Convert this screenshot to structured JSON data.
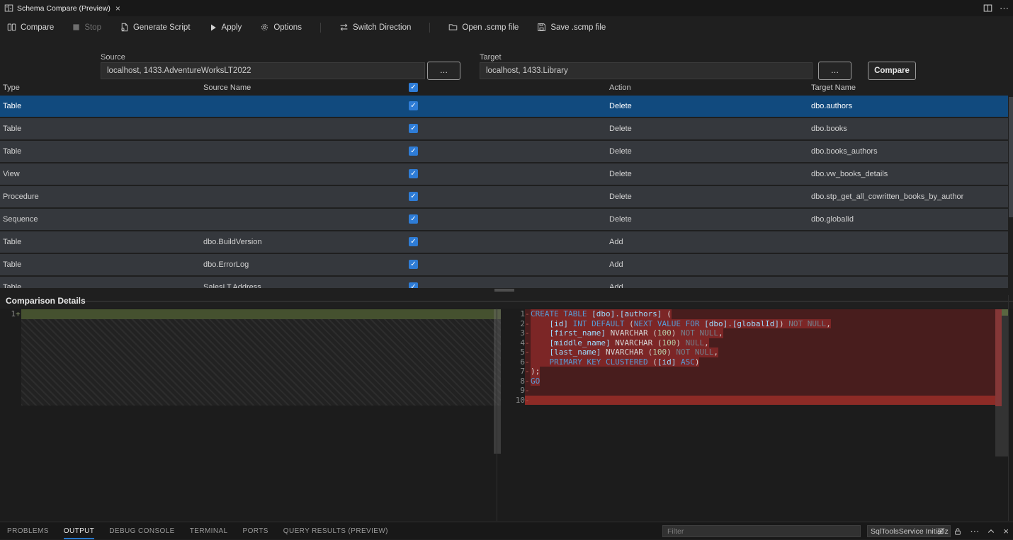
{
  "window": {
    "tab_title": "Schema Compare (Preview)",
    "close_glyph": "×",
    "tabbar_actions": [
      "split-editor",
      "more-actions"
    ]
  },
  "toolbar": {
    "compare": "Compare",
    "stop": "Stop",
    "generate_script": "Generate Script",
    "apply": "Apply",
    "options": "Options",
    "switch_direction": "Switch Direction",
    "open_scmp": "Open .scmp file",
    "save_scmp": "Save .scmp file"
  },
  "connection": {
    "source_label": "Source",
    "source_value": "localhost, 1433.AdventureWorksLT2022",
    "target_label": "Target",
    "target_value": "localhost, 1433.Library",
    "browse_label": "…",
    "compare_label": "Compare"
  },
  "grid": {
    "headers": {
      "type": "Type",
      "source_name": "Source Name",
      "action": "Action",
      "target_name": "Target Name"
    },
    "header_checkbox_checked": true,
    "check_glyph": "✓",
    "rows": [
      {
        "type": "Table",
        "source_name": "",
        "checked": true,
        "action": "Delete",
        "target_name": "dbo.authors",
        "selected": true
      },
      {
        "type": "Table",
        "source_name": "",
        "checked": true,
        "action": "Delete",
        "target_name": "dbo.books"
      },
      {
        "type": "Table",
        "source_name": "",
        "checked": true,
        "action": "Delete",
        "target_name": "dbo.books_authors"
      },
      {
        "type": "View",
        "source_name": "",
        "checked": true,
        "action": "Delete",
        "target_name": "dbo.vw_books_details"
      },
      {
        "type": "Procedure",
        "source_name": "",
        "checked": true,
        "action": "Delete",
        "target_name": "dbo.stp_get_all_cowritten_books_by_author"
      },
      {
        "type": "Sequence",
        "source_name": "",
        "checked": true,
        "action": "Delete",
        "target_name": "dbo.globalId"
      },
      {
        "type": "Table",
        "source_name": "dbo.BuildVersion",
        "checked": true,
        "action": "Add",
        "target_name": ""
      },
      {
        "type": "Table",
        "source_name": "dbo.ErrorLog",
        "checked": true,
        "action": "Add",
        "target_name": ""
      },
      {
        "type": "Table",
        "source_name": "SalesLT.Address",
        "checked": true,
        "action": "Add",
        "target_name": ""
      }
    ]
  },
  "details": {
    "title": "Comparison Details",
    "left": {
      "lines": [
        {
          "num": "1",
          "marker": "+",
          "text": ""
        }
      ]
    },
    "right": {
      "lines": [
        {
          "num": "1",
          "marker": "-",
          "tokens": [
            [
              "kw",
              "CREATE TABLE "
            ],
            [
              "id",
              "[dbo].[authors] "
            ],
            [
              "pt",
              "("
            ]
          ]
        },
        {
          "num": "2",
          "marker": "-",
          "tokens": [
            [
              "pt",
              "    "
            ],
            [
              "id",
              "[id]"
            ],
            [
              "pt",
              " "
            ],
            [
              "kw",
              "INT DEFAULT"
            ],
            [
              "pt",
              " ("
            ],
            [
              "kw",
              "NEXT VALUE FOR"
            ],
            [
              "pt",
              " "
            ],
            [
              "id",
              "[dbo].[globalId]"
            ],
            [
              "pt",
              ") "
            ],
            [
              "dim",
              "NOT NULL"
            ],
            [
              "pt",
              ","
            ]
          ]
        },
        {
          "num": "3",
          "marker": "-",
          "tokens": [
            [
              "pt",
              "    "
            ],
            [
              "id",
              "[first_name]"
            ],
            [
              "ty",
              " NVARCHAR"
            ],
            [
              "pt",
              " ("
            ],
            [
              "nm",
              "100"
            ],
            [
              "pt",
              ") "
            ],
            [
              "dim",
              "NOT NULL"
            ],
            [
              "pt",
              ","
            ]
          ]
        },
        {
          "num": "4",
          "marker": "-",
          "tokens": [
            [
              "pt",
              "    "
            ],
            [
              "id",
              "[middle_name]"
            ],
            [
              "ty",
              " NVARCHAR"
            ],
            [
              "pt",
              " ("
            ],
            [
              "nm",
              "100"
            ],
            [
              "pt",
              ") "
            ],
            [
              "dim",
              "NULL"
            ],
            [
              "pt",
              ","
            ]
          ]
        },
        {
          "num": "5",
          "marker": "-",
          "tokens": [
            [
              "pt",
              "    "
            ],
            [
              "id",
              "[last_name]"
            ],
            [
              "ty",
              " NVARCHAR"
            ],
            [
              "pt",
              " ("
            ],
            [
              "nm",
              "100"
            ],
            [
              "pt",
              ") "
            ],
            [
              "dim",
              "NOT NULL"
            ],
            [
              "pt",
              ","
            ]
          ]
        },
        {
          "num": "6",
          "marker": "-",
          "tokens": [
            [
              "kw",
              "    PRIMARY KEY CLUSTERED"
            ],
            [
              "pt",
              " ("
            ],
            [
              "id",
              "[id]"
            ],
            [
              "kw",
              " ASC"
            ],
            [
              "pt",
              ")"
            ]
          ]
        },
        {
          "num": "7",
          "marker": "-",
          "tokens": [
            [
              "pt",
              ");"
            ]
          ]
        },
        {
          "num": "8",
          "marker": "-",
          "tokens": [
            [
              "kw",
              "GO"
            ]
          ]
        },
        {
          "num": "9",
          "marker": "-",
          "tokens": []
        },
        {
          "num": "10",
          "marker": "-",
          "tokens": [],
          "full_highlight": true
        }
      ]
    }
  },
  "panel": {
    "tabs": [
      {
        "label": "PROBLEMS"
      },
      {
        "label": "OUTPUT",
        "active": true
      },
      {
        "label": "DEBUG CONSOLE"
      },
      {
        "label": "TERMINAL"
      },
      {
        "label": "PORTS"
      },
      {
        "label": "QUERY RESULTS (PREVIEW)"
      }
    ],
    "filter_placeholder": "Filter",
    "channel_selector": "SqlToolsService Initializ",
    "close_glyph": "×"
  },
  "colors": {
    "accent_checkbox": "#2e7cd6",
    "row_selection": "#114a7e",
    "deleted_line_bg": "#481d1d",
    "deleted_inline_bg": "#7c2626",
    "deleted_full_line_bg": "#8d2b26",
    "added_line_bg": "#45512f",
    "keyword": "#569cd6",
    "identifier": "#9cdcfe",
    "number": "#b5cea8",
    "panel_tab_underline": "#2677cb"
  }
}
